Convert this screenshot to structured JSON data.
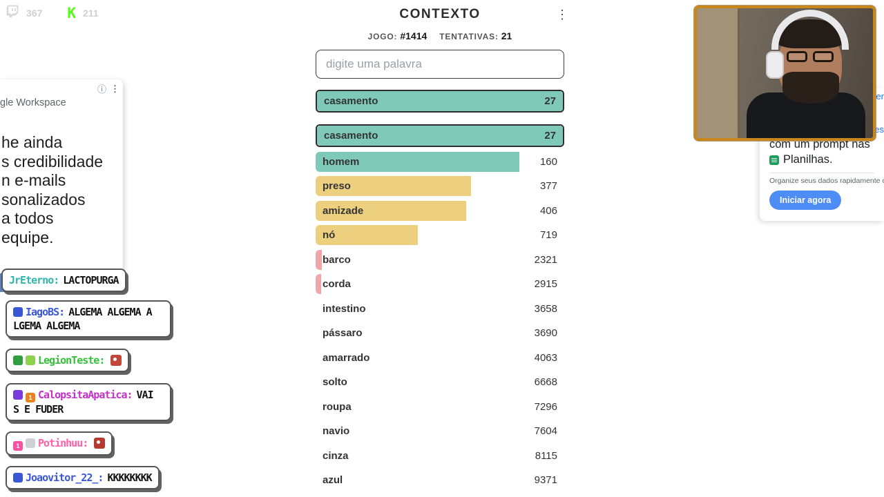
{
  "stream": {
    "twitch_viewers": "367",
    "kick_viewers": "211"
  },
  "game": {
    "title": "CONTEXTO",
    "menu_icon": "⋮",
    "game_label": "JOGO:",
    "game_number": "#1414",
    "attempts_label": "TENTATIVAS:",
    "attempts_value": "21",
    "input_placeholder": "digite uma palavra",
    "colors": {
      "green": "#7fc9b8",
      "yellow": "#ecd07f",
      "red": "#f2a6ac"
    },
    "pinned": {
      "word": "casamento",
      "rank": "27"
    },
    "rows": [
      {
        "word": "casamento",
        "rank": "27",
        "pct": 100,
        "color": "green",
        "highlight": true
      },
      {
        "word": "homem",
        "rank": "160",
        "pct": 82,
        "color": "green"
      },
      {
        "word": "preso",
        "rank": "377",
        "pct": 62.5,
        "color": "yellow"
      },
      {
        "word": "amizade",
        "rank": "406",
        "pct": 60.5,
        "color": "yellow"
      },
      {
        "word": "nó",
        "rank": "719",
        "pct": 41,
        "color": "yellow"
      },
      {
        "word": "barco",
        "rank": "2321",
        "pct": 2.6,
        "color": "red"
      },
      {
        "word": "corda",
        "rank": "2915",
        "pct": 2.2,
        "color": "red"
      },
      {
        "word": "intestino",
        "rank": "3658",
        "pct": 0,
        "color": "red"
      },
      {
        "word": "pássaro",
        "rank": "3690",
        "pct": 0,
        "color": "red"
      },
      {
        "word": "amarrado",
        "rank": "4063",
        "pct": 0,
        "color": "red"
      },
      {
        "word": "solto",
        "rank": "6668",
        "pct": 0,
        "color": "red"
      },
      {
        "word": "roupa",
        "rank": "7296",
        "pct": 0,
        "color": "red"
      },
      {
        "word": "navio",
        "rank": "7604",
        "pct": 0,
        "color": "red"
      },
      {
        "word": "cinza",
        "rank": "8115",
        "pct": 0,
        "color": "red"
      },
      {
        "word": "azul",
        "rank": "9371",
        "pct": 0,
        "color": "red"
      }
    ]
  },
  "left_ad": {
    "brand_fragment": "gle Workspace",
    "info_icon": "ⓘ",
    "menu_icon": "⋮",
    "lines": [
      "he ainda",
      "s credibilidade",
      "n e-mails",
      "sonalizados",
      "a todos",
      "equipe."
    ]
  },
  "right_ad": {
    "link_fragment_top": "Ler",
    "link_fragment_bottom": "es",
    "headline_fragment": "com um prompt nas",
    "product_line": "Planilhas.",
    "description_fragment": "Organize seus dados rapidamente co",
    "cta": "Iniciar agora",
    "accent": "#4e8df5",
    "sheets_green": "#1e9e5a"
  },
  "chat": {
    "messages": [
      {
        "user": "JrEterno:",
        "text": "LACTOPURGA",
        "user_color": "#2fb7ad",
        "badges": []
      },
      {
        "user": "IagoBS:",
        "text": "ALGEMA ALGEMA A LGEMA ALGEMA",
        "user_color": "#3a57d6",
        "badges": [
          {
            "name": "mod-badge",
            "color": "#3a57d6"
          }
        ]
      },
      {
        "user": "LegionTeste:",
        "text": "",
        "user_color": "#34c03a",
        "emote_color": "#c2473a",
        "badges": [
          {
            "name": "sub-badge",
            "color": "#2f9e3f"
          },
          {
            "name": "gift-badge",
            "color": "#8fd04e"
          }
        ]
      },
      {
        "user": "CalopsitaApatica:",
        "text": "VAI S E FUDER",
        "user_color": "#c232c8",
        "badges": [
          {
            "name": "sub-badge",
            "color": "#7a3bdb"
          },
          {
            "name": "bits-badge",
            "color": "#e8831f",
            "label": "1"
          }
        ]
      },
      {
        "user": "Potinhuu:",
        "text": "",
        "user_color": "#ff5fa8",
        "emote_color": "#b73a2e",
        "badges": [
          {
            "name": "sub-badge",
            "color": "#ff4fa0",
            "label": "1"
          },
          {
            "name": "hand-badge",
            "color": "#cdd1d6"
          }
        ]
      },
      {
        "user": "Joaovitor_22_:",
        "text": "KKKKKKKK",
        "user_color": "#3a57d6",
        "badges": [
          {
            "name": "mod-badge",
            "color": "#3a57d6"
          }
        ]
      }
    ]
  }
}
